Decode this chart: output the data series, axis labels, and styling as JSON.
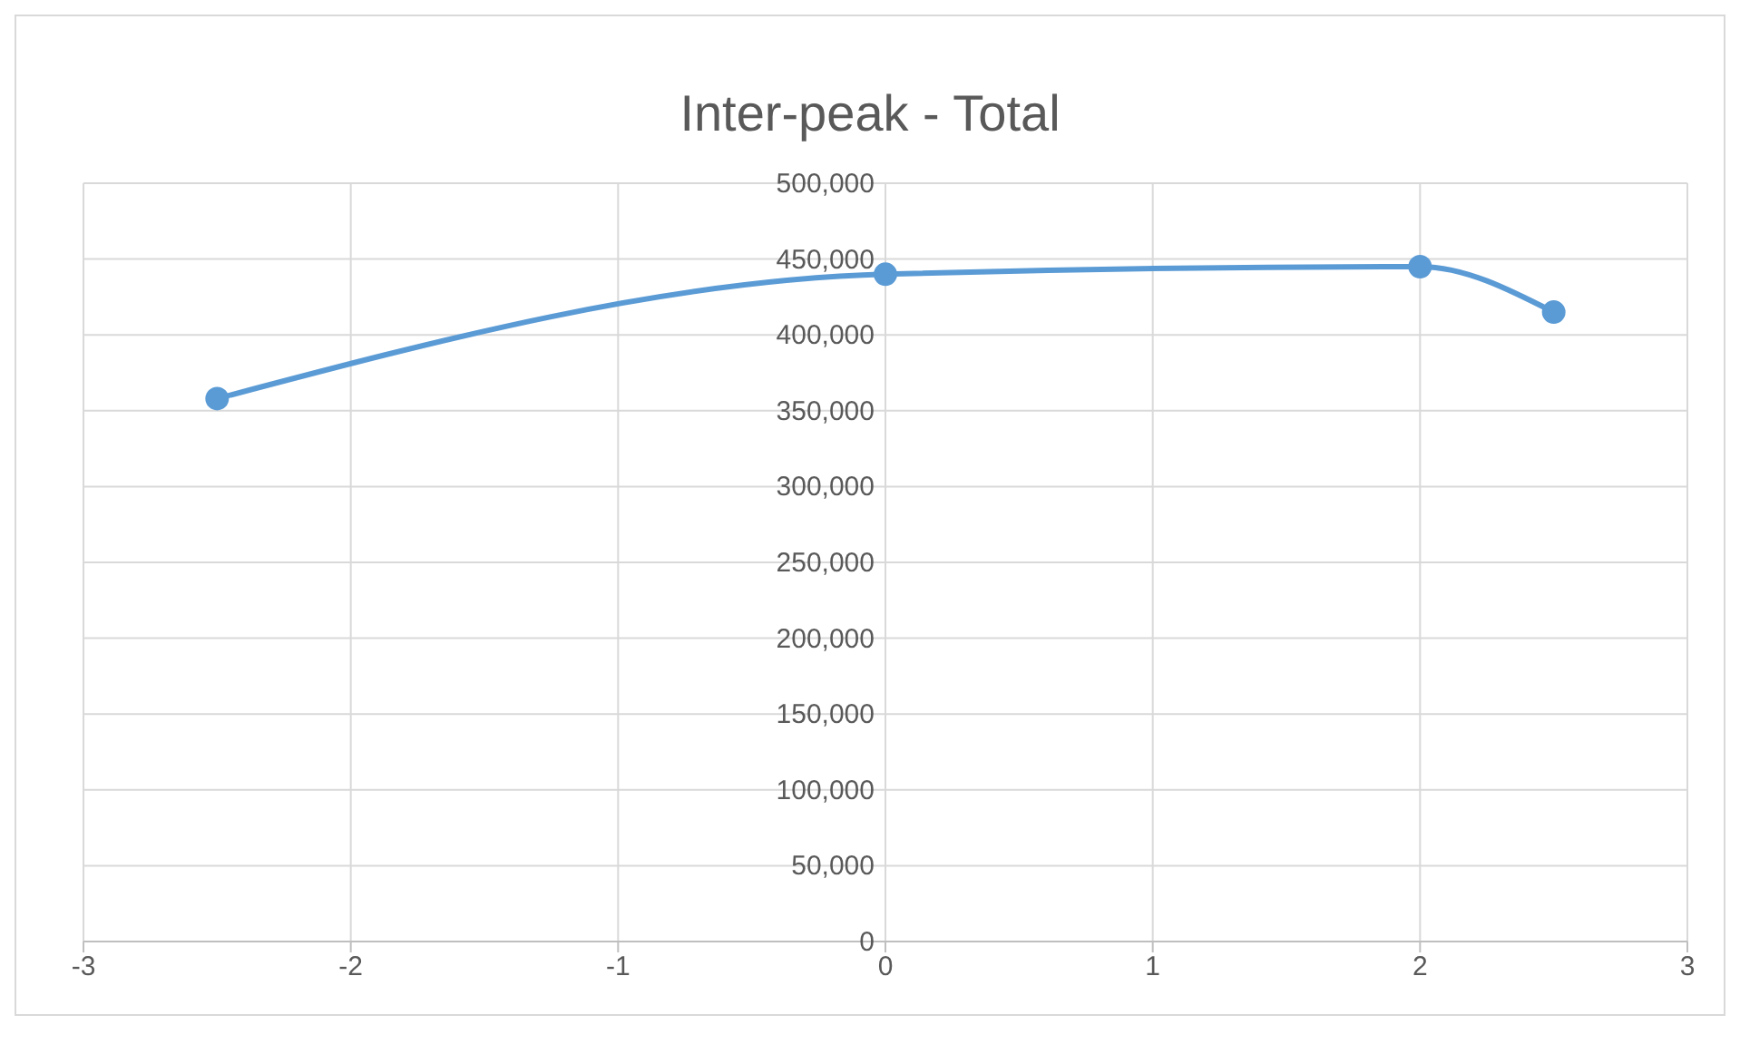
{
  "chart_data": {
    "type": "line",
    "title": "Inter-peak - Total",
    "x": [
      -2.5,
      0,
      2,
      2.5
    ],
    "series": [
      {
        "color": "#5b9bd5",
        "values": [
          358000,
          440000,
          445000,
          415000
        ]
      }
    ],
    "xlim": [
      -3,
      3
    ],
    "xticks": [
      -3,
      -2,
      -1,
      0,
      1,
      2,
      3
    ],
    "ylim": [
      0,
      500000
    ],
    "yticks": [
      0,
      {
        "value": 50000,
        "label": "50,000"
      },
      {
        "value": 100000,
        "label": "100,000"
      },
      {
        "value": 150000,
        "label": "150,000"
      },
      {
        "value": 200000,
        "label": "200,000"
      },
      {
        "value": 250000,
        "label": "250,000"
      },
      {
        "value": 300000,
        "label": "300,000"
      },
      {
        "value": 350000,
        "label": "350,000"
      },
      {
        "value": 400000,
        "label": "400,000"
      },
      {
        "value": 450000,
        "label": "450,000"
      },
      {
        "value": 500000,
        "label": "500,000"
      }
    ],
    "grid": true,
    "marker": "circle",
    "line_style": "solid"
  }
}
